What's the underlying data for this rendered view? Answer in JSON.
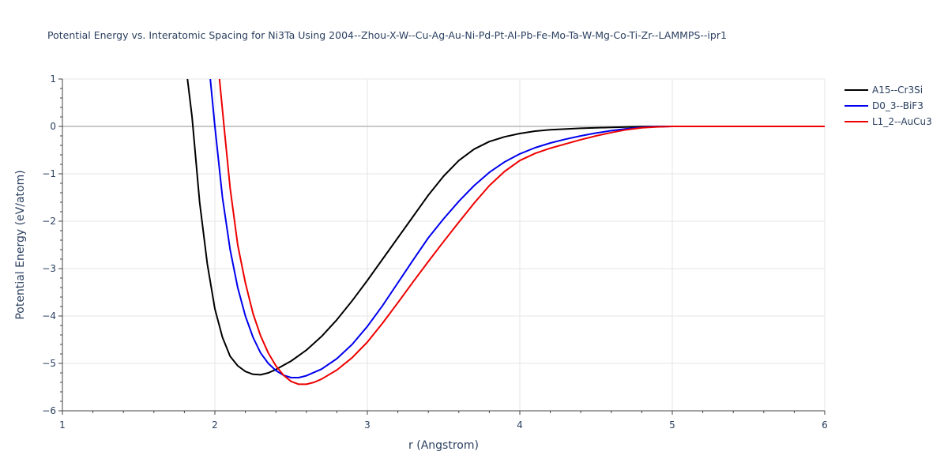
{
  "chart_data": {
    "type": "line",
    "title": "Potential Energy vs. Interatomic Spacing for Ni3Ta Using 2004--Zhou-X-W--Cu-Ag-Au-Ni-Pd-Pt-Al-Pb-Fe-Mo-Ta-W-Mg-Co-Ti-Zr--LAMMPS--ipr1",
    "xlabel": "r (Angstrom)",
    "ylabel": "Potential Energy (eV/atom)",
    "xlim": [
      1,
      6
    ],
    "ylim": [
      -6,
      1
    ],
    "xticks": [
      "1",
      "2",
      "3",
      "4",
      "5",
      "6"
    ],
    "yticks": [
      "1",
      "0",
      "−1",
      "−2",
      "−3",
      "−4",
      "−5",
      "−6"
    ],
    "grid": true,
    "legend_position": "top-right",
    "series": [
      {
        "name": "A15--Cr3Si",
        "color": "#000000",
        "points": [
          [
            1.82,
            1.0
          ],
          [
            1.85,
            0.2
          ],
          [
            1.9,
            -1.6
          ],
          [
            1.95,
            -2.9
          ],
          [
            2.0,
            -3.85
          ],
          [
            2.05,
            -4.45
          ],
          [
            2.1,
            -4.85
          ],
          [
            2.15,
            -5.05
          ],
          [
            2.2,
            -5.17
          ],
          [
            2.25,
            -5.23
          ],
          [
            2.3,
            -5.24
          ],
          [
            2.35,
            -5.2
          ],
          [
            2.4,
            -5.13
          ],
          [
            2.5,
            -4.95
          ],
          [
            2.6,
            -4.72
          ],
          [
            2.7,
            -4.43
          ],
          [
            2.8,
            -4.08
          ],
          [
            2.9,
            -3.68
          ],
          [
            3.0,
            -3.25
          ],
          [
            3.1,
            -2.8
          ],
          [
            3.2,
            -2.35
          ],
          [
            3.3,
            -1.9
          ],
          [
            3.4,
            -1.45
          ],
          [
            3.5,
            -1.05
          ],
          [
            3.6,
            -0.72
          ],
          [
            3.7,
            -0.48
          ],
          [
            3.8,
            -0.32
          ],
          [
            3.9,
            -0.22
          ],
          [
            4.0,
            -0.15
          ],
          [
            4.1,
            -0.1
          ],
          [
            4.2,
            -0.07
          ],
          [
            4.4,
            -0.04
          ],
          [
            4.6,
            -0.02
          ],
          [
            4.8,
            -0.005
          ],
          [
            5.0,
            0.0
          ],
          [
            6.0,
            0.0
          ]
        ]
      },
      {
        "name": "D0_3--BiF3",
        "color": "#0000ee",
        "points": [
          [
            1.97,
            1.0
          ],
          [
            2.0,
            0.0
          ],
          [
            2.05,
            -1.5
          ],
          [
            2.1,
            -2.6
          ],
          [
            2.15,
            -3.4
          ],
          [
            2.2,
            -4.0
          ],
          [
            2.25,
            -4.45
          ],
          [
            2.3,
            -4.78
          ],
          [
            2.35,
            -5.0
          ],
          [
            2.4,
            -5.15
          ],
          [
            2.45,
            -5.25
          ],
          [
            2.5,
            -5.3
          ],
          [
            2.55,
            -5.3
          ],
          [
            2.6,
            -5.26
          ],
          [
            2.7,
            -5.12
          ],
          [
            2.8,
            -4.9
          ],
          [
            2.9,
            -4.6
          ],
          [
            3.0,
            -4.22
          ],
          [
            3.1,
            -3.78
          ],
          [
            3.2,
            -3.3
          ],
          [
            3.3,
            -2.82
          ],
          [
            3.4,
            -2.35
          ],
          [
            3.5,
            -1.95
          ],
          [
            3.6,
            -1.58
          ],
          [
            3.7,
            -1.25
          ],
          [
            3.8,
            -0.97
          ],
          [
            3.9,
            -0.75
          ],
          [
            4.0,
            -0.58
          ],
          [
            4.1,
            -0.45
          ],
          [
            4.2,
            -0.35
          ],
          [
            4.3,
            -0.27
          ],
          [
            4.4,
            -0.2
          ],
          [
            4.5,
            -0.14
          ],
          [
            4.6,
            -0.09
          ],
          [
            4.7,
            -0.05
          ],
          [
            4.8,
            -0.02
          ],
          [
            4.9,
            -0.005
          ],
          [
            5.0,
            0.0
          ],
          [
            6.0,
            0.0
          ]
        ]
      },
      {
        "name": "L1_2--AuCu3",
        "color": "#ee0000",
        "points": [
          [
            2.03,
            1.0
          ],
          [
            2.06,
            0.0
          ],
          [
            2.1,
            -1.3
          ],
          [
            2.15,
            -2.5
          ],
          [
            2.2,
            -3.3
          ],
          [
            2.25,
            -3.95
          ],
          [
            2.3,
            -4.42
          ],
          [
            2.35,
            -4.78
          ],
          [
            2.4,
            -5.05
          ],
          [
            2.45,
            -5.25
          ],
          [
            2.5,
            -5.38
          ],
          [
            2.55,
            -5.44
          ],
          [
            2.6,
            -5.44
          ],
          [
            2.65,
            -5.4
          ],
          [
            2.7,
            -5.33
          ],
          [
            2.8,
            -5.14
          ],
          [
            2.9,
            -4.88
          ],
          [
            3.0,
            -4.55
          ],
          [
            3.1,
            -4.15
          ],
          [
            3.2,
            -3.72
          ],
          [
            3.3,
            -3.28
          ],
          [
            3.4,
            -2.85
          ],
          [
            3.5,
            -2.43
          ],
          [
            3.6,
            -2.02
          ],
          [
            3.7,
            -1.62
          ],
          [
            3.8,
            -1.25
          ],
          [
            3.9,
            -0.95
          ],
          [
            4.0,
            -0.72
          ],
          [
            4.1,
            -0.57
          ],
          [
            4.2,
            -0.46
          ],
          [
            4.3,
            -0.37
          ],
          [
            4.4,
            -0.28
          ],
          [
            4.5,
            -0.2
          ],
          [
            4.6,
            -0.13
          ],
          [
            4.7,
            -0.07
          ],
          [
            4.8,
            -0.03
          ],
          [
            4.9,
            -0.01
          ],
          [
            5.0,
            0.0
          ],
          [
            6.0,
            0.0
          ]
        ]
      }
    ]
  }
}
